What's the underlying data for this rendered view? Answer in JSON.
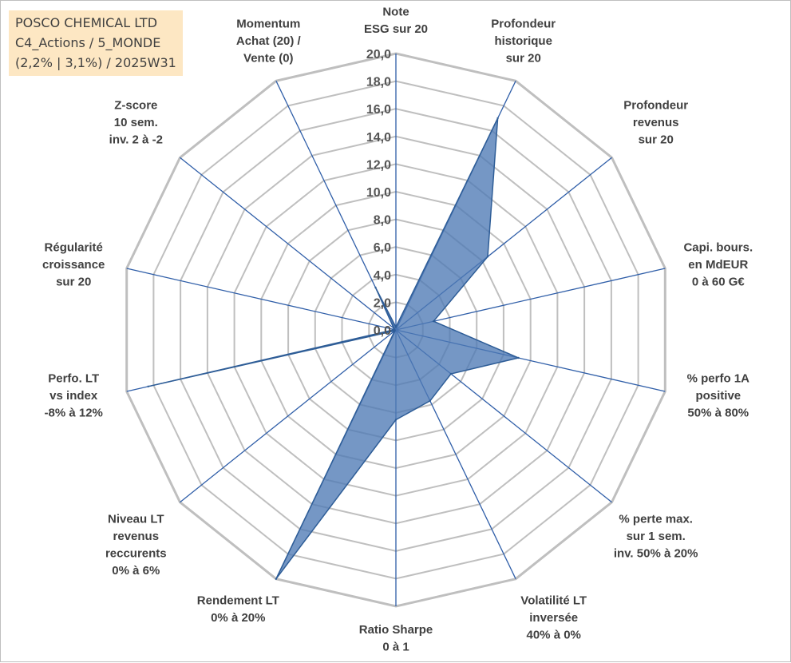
{
  "title_box": {
    "lines": [
      "POSCO CHEMICAL LTD",
      "C4_Actions / 5_MONDE",
      "(2,2% | 3,1%) / 2025W31"
    ]
  },
  "chart_data": {
    "type": "radar",
    "range": [
      0,
      20
    ],
    "tick_step": 2,
    "tick_labels": [
      "0,0",
      "2,0",
      "4,0",
      "6,0",
      "8,0",
      "10,0",
      "12,0",
      "14,0",
      "16,0",
      "18,0",
      "20,0"
    ],
    "axes": [
      [
        "Note",
        "ESG sur 20"
      ],
      [
        "Profondeur",
        "historique",
        "sur 20"
      ],
      [
        "Profondeur",
        "revenus",
        "sur 20"
      ],
      [
        "Capi. bours.",
        "en MdEUR",
        "0 à 60 G€"
      ],
      [
        "% perfo 1A",
        "positive",
        "50% à 80%"
      ],
      [
        "% perte max.",
        "sur 1 sem.",
        "inv. 50% à 20%"
      ],
      [
        "Volatilité LT",
        "inversée",
        "40% à 0%"
      ],
      [
        "Ratio Sharpe",
        "0 à 1"
      ],
      [
        "Rendement LT",
        "0% à 20%"
      ],
      [
        "Niveau LT",
        "revenus",
        "reccurents",
        "0% à 6%"
      ],
      [
        "Perfo. LT",
        "vs index",
        "-8% à 12%"
      ],
      [
        "Régularité",
        "croissance",
        "sur 20"
      ],
      [
        "Z-score",
        "10 sem.",
        "inv. 2 à -2"
      ],
      [
        "Momentum",
        "Achat (20) /",
        "Vente (0)"
      ]
    ],
    "values": [
      0.2,
      17.0,
      8.5,
      2.8,
      9.1,
      5.1,
      5.7,
      6.5,
      20.0,
      0.1,
      18.4,
      0.1,
      0.2,
      3.4
    ],
    "colors": {
      "fill": "#4e7ab5",
      "outline": "#2e5d97",
      "grid": "#bfbfbf",
      "spoke": "#2f5ea8"
    }
  }
}
